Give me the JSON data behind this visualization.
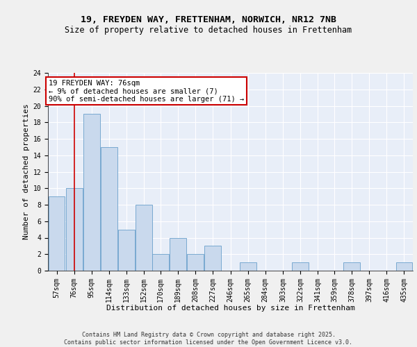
{
  "title1": "19, FREYDEN WAY, FRETTENHAM, NORWICH, NR12 7NB",
  "title2": "Size of property relative to detached houses in Frettenham",
  "xlabel": "Distribution of detached houses by size in Frettenham",
  "ylabel": "Number of detached properties",
  "bins": [
    57,
    76,
    95,
    114,
    133,
    152,
    170,
    189,
    208,
    227,
    246,
    265,
    284,
    303,
    322,
    341,
    359,
    378,
    397,
    416,
    435
  ],
  "values": [
    9,
    10,
    19,
    15,
    5,
    8,
    2,
    4,
    2,
    3,
    0,
    1,
    0,
    0,
    1,
    0,
    0,
    1,
    0,
    0,
    1
  ],
  "bar_color": "#c9d9ed",
  "bar_edge_color": "#6a9fcb",
  "red_line_x": 76,
  "red_line_color": "#cc0000",
  "annotation_text": "19 FREYDEN WAY: 76sqm\n← 9% of detached houses are smaller (7)\n90% of semi-detached houses are larger (71) →",
  "annotation_box_color": "#ffffff",
  "annotation_box_edge": "#cc0000",
  "ylim": [
    0,
    24
  ],
  "yticks": [
    0,
    2,
    4,
    6,
    8,
    10,
    12,
    14,
    16,
    18,
    20,
    22,
    24
  ],
  "background_color": "#e8eef8",
  "fig_background": "#f0f0f0",
  "footer_text": "Contains HM Land Registry data © Crown copyright and database right 2025.\nContains public sector information licensed under the Open Government Licence v3.0.",
  "title1_fontsize": 9.5,
  "title2_fontsize": 8.5,
  "xlabel_fontsize": 8,
  "ylabel_fontsize": 8,
  "tick_fontsize": 7,
  "annotation_fontsize": 7.5,
  "footer_fontsize": 6
}
